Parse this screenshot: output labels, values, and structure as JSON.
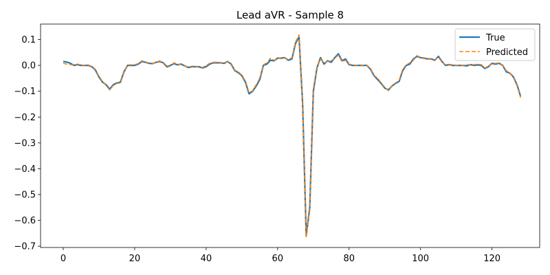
{
  "chart_data": {
    "type": "line",
    "title": "Lead aVR - Sample 8",
    "xlabel": "",
    "ylabel": "",
    "xlim": [
      -6.35,
      133.35
    ],
    "ylim": [
      -0.705,
      0.16
    ],
    "xticks": [
      0,
      20,
      40,
      60,
      80,
      100,
      120
    ],
    "yticks": [
      0.1,
      0.0,
      -0.1,
      -0.2,
      -0.3,
      -0.4,
      -0.5,
      -0.6,
      -0.7
    ],
    "ytick_labels": [
      "0.1",
      "0.0",
      "−0.1",
      "−0.2",
      "−0.3",
      "−0.4",
      "−0.5",
      "−0.6",
      "−0.7"
    ],
    "grid": false,
    "legend_position": "top-right",
    "series": [
      {
        "name": "True",
        "color": "#1f77b4",
        "dash": "solid",
        "values": [
          0.015,
          0.013,
          0.008,
          0.0,
          0.003,
          0.0,
          0.0,
          0.0,
          -0.005,
          -0.018,
          -0.045,
          -0.065,
          -0.075,
          -0.092,
          -0.075,
          -0.068,
          -0.065,
          -0.025,
          0.0,
          0.0,
          0.0,
          0.005,
          0.015,
          0.012,
          0.008,
          0.007,
          0.012,
          0.015,
          0.01,
          -0.005,
          0.0,
          0.007,
          0.002,
          0.005,
          -0.002,
          -0.008,
          -0.005,
          -0.005,
          -0.005,
          -0.01,
          -0.005,
          0.005,
          0.01,
          0.01,
          0.01,
          0.008,
          0.015,
          0.005,
          -0.02,
          -0.028,
          -0.04,
          -0.065,
          -0.11,
          -0.1,
          -0.08,
          -0.055,
          0.0,
          0.005,
          0.02,
          0.018,
          0.028,
          0.028,
          0.03,
          0.02,
          0.025,
          0.085,
          0.11,
          -0.15,
          -0.66,
          -0.55,
          -0.1,
          -0.01,
          0.03,
          0.005,
          0.018,
          0.012,
          0.03,
          0.045,
          0.018,
          0.025,
          0.003,
          0.0,
          0.0,
          0.0,
          0.0,
          0.0,
          -0.015,
          -0.04,
          -0.055,
          -0.07,
          -0.088,
          -0.095,
          -0.08,
          -0.07,
          -0.062,
          -0.02,
          0.0,
          0.005,
          0.025,
          0.035,
          0.03,
          0.028,
          0.025,
          0.025,
          0.02,
          0.035,
          0.015,
          0.0,
          0.003,
          0.0,
          0.0,
          0.0,
          0.0,
          -0.002,
          0.003,
          0.0,
          0.002,
          0.0,
          -0.012,
          -0.005,
          0.008,
          0.005,
          0.008,
          0.0,
          -0.025,
          -0.03,
          -0.045,
          -0.075,
          -0.12
        ]
      },
      {
        "name": "Predicted",
        "color": "#ff7f0e",
        "dash": "dashed",
        "values": [
          0.008,
          0.005,
          0.003,
          0.002,
          0.005,
          0.002,
          0.0,
          0.002,
          -0.004,
          -0.015,
          -0.042,
          -0.062,
          -0.078,
          -0.095,
          -0.078,
          -0.07,
          -0.068,
          -0.028,
          0.002,
          0.002,
          0.003,
          0.007,
          0.018,
          0.013,
          0.01,
          0.008,
          0.01,
          0.018,
          0.008,
          -0.008,
          -0.002,
          0.01,
          0.005,
          0.003,
          -0.003,
          -0.006,
          -0.003,
          -0.003,
          -0.008,
          -0.008,
          0.0,
          0.008,
          0.012,
          0.012,
          0.008,
          0.01,
          0.013,
          0.008,
          -0.018,
          -0.025,
          -0.038,
          -0.06,
          -0.105,
          -0.098,
          -0.075,
          -0.05,
          0.002,
          0.01,
          0.028,
          0.02,
          0.026,
          0.03,
          0.03,
          0.022,
          0.03,
          0.09,
          0.118,
          -0.16,
          -0.665,
          -0.56,
          -0.09,
          -0.005,
          0.025,
          0.01,
          0.015,
          0.018,
          0.028,
          0.04,
          0.015,
          0.02,
          0.005,
          0.002,
          0.0,
          0.002,
          0.0,
          0.0,
          -0.012,
          -0.038,
          -0.05,
          -0.068,
          -0.085,
          -0.098,
          -0.078,
          -0.068,
          -0.058,
          -0.015,
          0.002,
          0.01,
          0.02,
          0.038,
          0.03,
          0.026,
          0.025,
          0.023,
          0.022,
          0.032,
          0.012,
          0.003,
          0.002,
          -0.002,
          0.0,
          0.002,
          0.0,
          0.003,
          0.002,
          0.003,
          0.005,
          0.003,
          -0.01,
          -0.003,
          0.005,
          0.008,
          0.01,
          -0.002,
          -0.02,
          -0.03,
          -0.048,
          -0.078,
          -0.125
        ]
      }
    ]
  }
}
